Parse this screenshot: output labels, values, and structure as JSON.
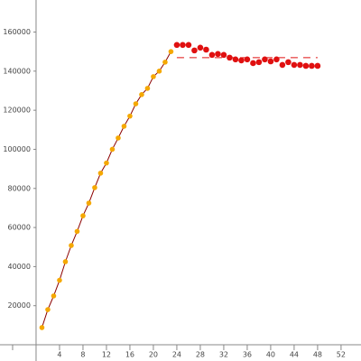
{
  "chart_data": {
    "type": "scatter",
    "xlim": [
      -6.15,
      55.4
    ],
    "ylim": [
      -8300,
      176400
    ],
    "xticks": [
      {
        "value": -4,
        "label": null
      },
      4,
      8,
      12,
      16,
      20,
      24,
      28,
      32,
      36,
      40,
      44,
      48,
      52
    ],
    "yticks": [
      20000,
      40000,
      60000,
      80000,
      100000,
      120000,
      140000,
      160000
    ],
    "series": [
      {
        "color": "#f5a800",
        "line_color": "#8b0000",
        "x": [
          1,
          2,
          3,
          4,
          5,
          6,
          7,
          8,
          9,
          10,
          11,
          12,
          13,
          14,
          15,
          16,
          17,
          18,
          19,
          20,
          21,
          22,
          23
        ],
        "values": [
          8800,
          18000,
          25000,
          33000,
          42500,
          50800,
          58000,
          66000,
          72500,
          80400,
          87800,
          93000,
          100000,
          105800,
          111800,
          117000,
          123300,
          128000,
          131200,
          137200,
          140000,
          144600,
          150000
        ]
      },
      {
        "color": "#e01010",
        "x": [
          24,
          25,
          26,
          27,
          28,
          29,
          30,
          31,
          32,
          33,
          34,
          35,
          36,
          37,
          38,
          39,
          40,
          41,
          42,
          43,
          44,
          45,
          46,
          47,
          48
        ],
        "values": [
          153400,
          153400,
          153400,
          150600,
          152000,
          151000,
          148300,
          148800,
          148300,
          146900,
          146000,
          145500,
          146000,
          144100,
          144600,
          146000,
          145000,
          146000,
          143200,
          144600,
          143200,
          143200,
          142700,
          142700,
          142700
        ]
      }
    ],
    "reference_lines": [
      {
        "y": 146900,
        "x": [
          24,
          48
        ],
        "color": "#e01010",
        "dashed": true
      }
    ]
  }
}
